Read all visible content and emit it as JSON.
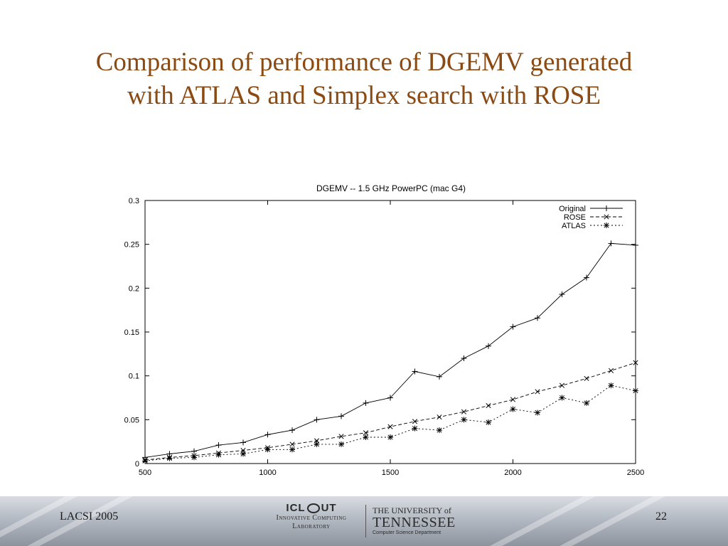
{
  "slide": {
    "title_line1": "Comparison of performance of DGEMV generated",
    "title_line2": "with ATLAS and Simplex search with ROSE",
    "title_color": "#8a4a12"
  },
  "footer": {
    "left_text": "LACSI 2005",
    "page_number": "22",
    "icl_logo": {
      "mark": "ICL",
      "mark_right": "UT",
      "line1": "Innovative Computing",
      "line2": "Laboratory"
    },
    "ut_logo": {
      "line1": "THE UNIVERSITY of",
      "line2": "TENNESSEE",
      "line3": "Computer Science Department"
    }
  },
  "chart_data": {
    "type": "line",
    "title": "DGEMV -- 1.5 GHz PowerPC (mac G4)",
    "xlabel": "",
    "ylabel": "",
    "xlim": [
      500,
      2500
    ],
    "ylim": [
      0,
      0.3
    ],
    "x_ticks": [
      500,
      1000,
      1500,
      2000,
      2500
    ],
    "y_ticks": [
      0,
      0.05,
      0.1,
      0.15,
      0.2,
      0.25,
      0.3
    ],
    "x_tick_labels": [
      "500",
      "1000",
      "1500",
      "2000",
      "2500"
    ],
    "y_tick_labels": [
      "0",
      "0.05",
      "0.1",
      "0.15",
      "0.2",
      "0.25",
      "0.3"
    ],
    "grid": false,
    "legend_position": "top-right",
    "x": [
      500,
      600,
      700,
      800,
      900,
      1000,
      1100,
      1200,
      1300,
      1400,
      1500,
      1600,
      1700,
      1800,
      1900,
      2000,
      2100,
      2200,
      2300,
      2400,
      2500
    ],
    "series": [
      {
        "name": "Original",
        "marker": "+",
        "dash": "solid",
        "values": [
          0.007,
          0.011,
          0.014,
          0.021,
          0.024,
          0.033,
          0.038,
          0.05,
          0.054,
          0.069,
          0.075,
          0.105,
          0.099,
          0.12,
          0.134,
          0.156,
          0.166,
          0.193,
          0.212,
          0.251,
          0.249
        ]
      },
      {
        "name": "ROSE",
        "marker": "x",
        "dash": "dashed",
        "values": [
          0.004,
          0.007,
          0.009,
          0.012,
          0.015,
          0.018,
          0.022,
          0.026,
          0.031,
          0.035,
          0.042,
          0.048,
          0.053,
          0.059,
          0.066,
          0.073,
          0.082,
          0.089,
          0.097,
          0.106,
          0.115
        ]
      },
      {
        "name": "ATLAS",
        "marker": "*",
        "dash": "dotted",
        "values": [
          0.003,
          0.006,
          0.007,
          0.01,
          0.011,
          0.016,
          0.016,
          0.022,
          0.022,
          0.03,
          0.03,
          0.04,
          0.038,
          0.05,
          0.047,
          0.062,
          0.058,
          0.075,
          0.069,
          0.089,
          0.083
        ]
      }
    ]
  }
}
